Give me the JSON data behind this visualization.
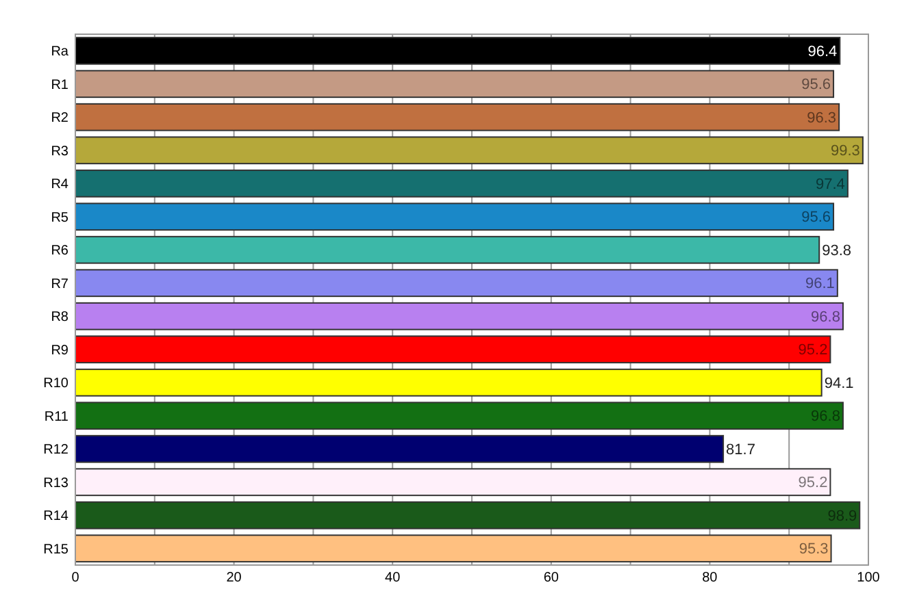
{
  "chart_data": {
    "type": "bar",
    "orientation": "horizontal",
    "categories": [
      "Ra",
      "R1",
      "R2",
      "R3",
      "R4",
      "R5",
      "R6",
      "R7",
      "R8",
      "R9",
      "R10",
      "R11",
      "R12",
      "R13",
      "R14",
      "R15"
    ],
    "values": [
      96.4,
      95.6,
      96.3,
      99.3,
      97.4,
      95.6,
      93.8,
      96.1,
      96.8,
      95.2,
      94.1,
      96.8,
      81.7,
      95.2,
      98.9,
      95.3
    ],
    "colors": [
      "#000000",
      "#c49a84",
      "#c07040",
      "#b5a83a",
      "#157070",
      "#1a88c8",
      "#3cb8a8",
      "#8888f0",
      "#b880f0",
      "#ff0000",
      "#ffff00",
      "#137013",
      "#000070",
      "#fff0fa",
      "#1a5a1a",
      "#ffc080"
    ],
    "xlim": [
      0,
      100
    ],
    "xticks": [
      0,
      {
        "value": 10,
        "label": null
      },
      20,
      {
        "value": 30,
        "label": null
      },
      40,
      {
        "value": 50,
        "label": null
      },
      60,
      {
        "value": 70,
        "label": null
      },
      80,
      {
        "value": 90,
        "label": null
      },
      100
    ],
    "grid": "x",
    "data_labels": true
  }
}
